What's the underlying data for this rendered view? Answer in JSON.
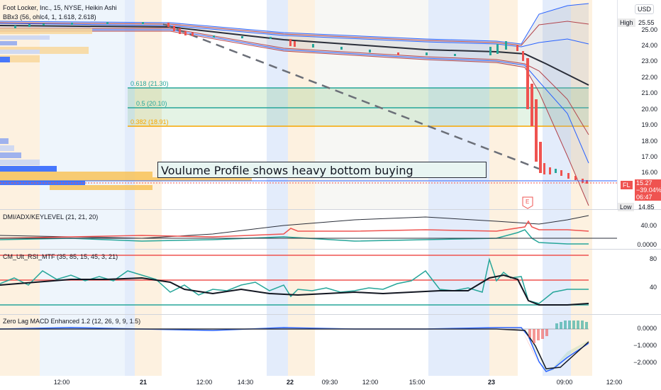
{
  "main_pane": {
    "title": "Foot Locker, Inc., 15, NYSE, Heikin Ashi",
    "indicator": "BBx3 (56, ohlc4, 1, 1.618, 2.618)",
    "currency": "USD",
    "high_label": "High",
    "high_value": "25.55",
    "low_label": "Low",
    "low_value": "14.85",
    "symbol_tag": "FL",
    "price_box": [
      "15.27",
      "−39.04%",
      "06:47"
    ],
    "price_ticks": [
      "25.00",
      "24.00",
      "23.00",
      "22.00",
      "21.00",
      "20.00",
      "19.00",
      "18.00",
      "17.00",
      "16.00"
    ],
    "fib_levels": [
      "0.618 (21.30)",
      "0.5 (20.10)",
      "0.382 (18.91)"
    ],
    "annotation": "Voulume Profile shows heavy bottom buying",
    "earnings_marker": "E"
  },
  "dmi_pane": {
    "title": "DMI/ADX/KEYLEVEL (21, 21, 20)",
    "ticks": [
      "40.00",
      "0.0000"
    ]
  },
  "rsi_pane": {
    "title": "CM_Ult_RSI_MTF (35, 85, 15, 45, 3, 21)",
    "ticks": [
      "80",
      "40"
    ]
  },
  "macd_pane": {
    "title": "Zero Lag MACD Enhanced 1.2 (12, 26, 9, 9, 1.5)",
    "ticks": [
      "0.0000",
      "−1.0000",
      "−2.0000"
    ]
  },
  "time_axis": [
    "12:00",
    "21",
    "12:00",
    "14:30",
    "22",
    "09:30",
    "12:00",
    "15:00",
    "23",
    "09:00",
    "12:00"
  ],
  "colors": {
    "up": "#26a69a",
    "down": "#ef5350",
    "bb_blue": "#2962ff",
    "bb_red": "#b2444d",
    "fib_green": "#4caf50",
    "fib_orange": "#f7a600",
    "session_orange": "#fdf1e0",
    "session_blue": "#e3ecfb"
  }
}
